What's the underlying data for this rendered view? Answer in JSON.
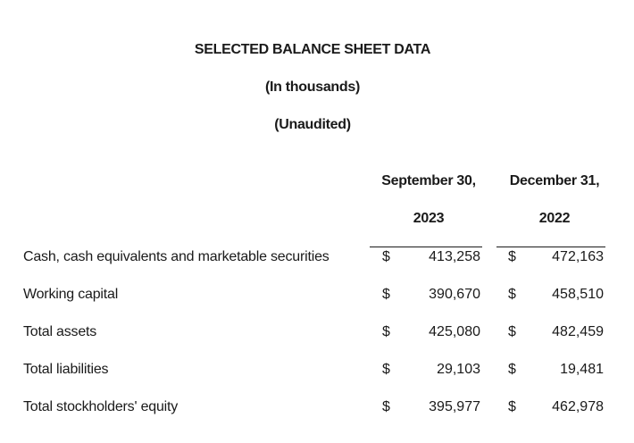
{
  "header": {
    "title": "SELECTED BALANCE SHEET DATA",
    "units": "(In thousands)",
    "audit_status": "(Unaudited)"
  },
  "columns": [
    {
      "line1": "September 30,",
      "line2": "2023"
    },
    {
      "line1": "December 31,",
      "line2": "2022"
    }
  ],
  "rows": [
    {
      "label": "Cash, cash equivalents and marketable securities",
      "cur1": "$",
      "v1": "413,258",
      "cur2": "$",
      "v2": "472,163"
    },
    {
      "label": "Working capital",
      "cur1": "$",
      "v1": "390,670",
      "cur2": "$",
      "v2": "458,510"
    },
    {
      "label": "Total assets",
      "cur1": "$",
      "v1": "425,080",
      "cur2": "$",
      "v2": "482,459"
    },
    {
      "label": "Total liabilities",
      "cur1": "$",
      "v1": "29,103",
      "cur2": "$",
      "v2": "19,481"
    },
    {
      "label": "Total stockholders' equity",
      "cur1": "$",
      "v1": "395,977",
      "cur2": "$",
      "v2": "462,978"
    }
  ]
}
